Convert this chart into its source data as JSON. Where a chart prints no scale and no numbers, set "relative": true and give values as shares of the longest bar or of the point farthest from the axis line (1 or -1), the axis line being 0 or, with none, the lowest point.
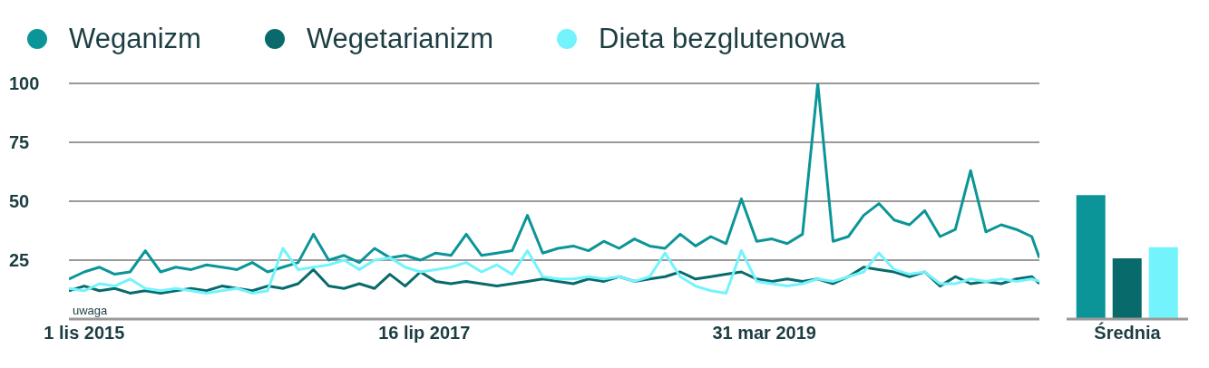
{
  "chart_data": [
    {
      "type": "line",
      "legend": "top",
      "grid": "y",
      "marker": "none",
      "line_style": "solid",
      "x": [
        "2015-10-04",
        "2015-11-01",
        "2015-11-29",
        "2015-12-27",
        "2016-01-24",
        "2016-02-21",
        "2016-03-20",
        "2016-04-17",
        "2016-05-15",
        "2016-06-12",
        "2016-07-10",
        "2016-08-07",
        "2016-09-04",
        "2016-10-02",
        "2016-10-30",
        "2016-11-27",
        "2016-12-25",
        "2017-01-22",
        "2017-02-19",
        "2017-03-19",
        "2017-04-16",
        "2017-05-14",
        "2017-06-11",
        "2017-07-09",
        "2017-08-06",
        "2017-09-03",
        "2017-10-01",
        "2017-10-29",
        "2017-11-26",
        "2017-12-24",
        "2018-01-21",
        "2018-02-18",
        "2018-03-18",
        "2018-04-15",
        "2018-05-13",
        "2018-06-10",
        "2018-07-08",
        "2018-08-05",
        "2018-09-02",
        "2018-09-30",
        "2018-10-28",
        "2018-11-25",
        "2018-12-23",
        "2019-01-20",
        "2019-02-17",
        "2019-03-17",
        "2019-04-14",
        "2019-05-12",
        "2019-06-09",
        "2019-07-07",
        "2019-08-04",
        "2019-09-01",
        "2019-09-29",
        "2019-10-27",
        "2019-11-24",
        "2019-12-22",
        "2020-01-19",
        "2020-02-16",
        "2020-03-15",
        "2020-04-12",
        "2020-05-10",
        "2020-06-07",
        "2020-07-05",
        "2020-08-02",
        "2020-08-16"
      ],
      "series": [
        {
          "name": "Weganizm",
          "color": "#0c9598",
          "values": [
            17,
            20,
            22,
            19,
            20,
            29,
            20,
            22,
            21,
            23,
            22,
            21,
            24,
            20,
            22,
            24,
            36,
            25,
            27,
            24,
            30,
            26,
            27,
            25,
            28,
            27,
            36,
            27,
            28,
            29,
            44,
            28,
            30,
            31,
            29,
            33,
            30,
            34,
            31,
            30,
            36,
            31,
            35,
            32,
            51,
            33,
            34,
            32,
            36,
            100,
            33,
            35,
            44,
            49,
            42,
            40,
            46,
            35,
            38,
            63,
            37,
            40,
            38,
            35,
            26
          ]
        },
        {
          "name": "Wegetarianizm",
          "color": "#096a6c",
          "values": [
            12,
            14,
            12,
            13,
            11,
            12,
            11,
            12,
            13,
            12,
            14,
            13,
            12,
            14,
            13,
            15,
            21,
            14,
            13,
            15,
            13,
            19,
            14,
            20,
            16,
            15,
            16,
            15,
            14,
            15,
            16,
            17,
            16,
            15,
            17,
            16,
            18,
            16,
            17,
            18,
            20,
            17,
            18,
            19,
            20,
            17,
            16,
            17,
            16,
            17,
            15,
            18,
            22,
            21,
            20,
            18,
            20,
            14,
            18,
            15,
            16,
            15,
            17,
            18,
            15
          ]
        },
        {
          "name": "Dieta bezglutenowa",
          "color": "#73f3fc",
          "values": [
            13,
            12,
            15,
            14,
            17,
            13,
            12,
            13,
            12,
            11,
            12,
            13,
            11,
            12,
            30,
            21,
            22,
            23,
            25,
            21,
            25,
            26,
            22,
            20,
            21,
            22,
            24,
            20,
            23,
            19,
            29,
            18,
            17,
            17,
            18,
            17,
            18,
            16,
            18,
            28,
            18,
            14,
            12,
            11,
            29,
            16,
            15,
            14,
            15,
            17,
            16,
            18,
            20,
            28,
            21,
            19,
            20,
            15,
            15,
            17,
            16,
            17,
            16,
            17,
            16
          ]
        }
      ],
      "xlim": [
        "2015-10-04",
        "2020-08-16"
      ],
      "xticks": [
        {
          "value": "2015-11-01",
          "label": "1 lis 2015"
        },
        {
          "value": "2017-07-16",
          "label": "16 lip 2017"
        },
        {
          "value": "2019-03-31",
          "label": "31 mar 2019"
        }
      ],
      "ylim": [
        0,
        100
      ],
      "yticks": [
        25,
        50,
        75,
        100
      ],
      "annotations": [
        "uwaga"
      ]
    },
    {
      "type": "bar",
      "relative": true,
      "categories": [
        "Średnia"
      ],
      "series": [
        {
          "color": "#0c9598",
          "values": [
            1
          ]
        },
        {
          "color": "#096a6c",
          "values": [
            0.49
          ]
        },
        {
          "color": "#73f3fc",
          "values": [
            0.58
          ]
        }
      ]
    }
  ]
}
